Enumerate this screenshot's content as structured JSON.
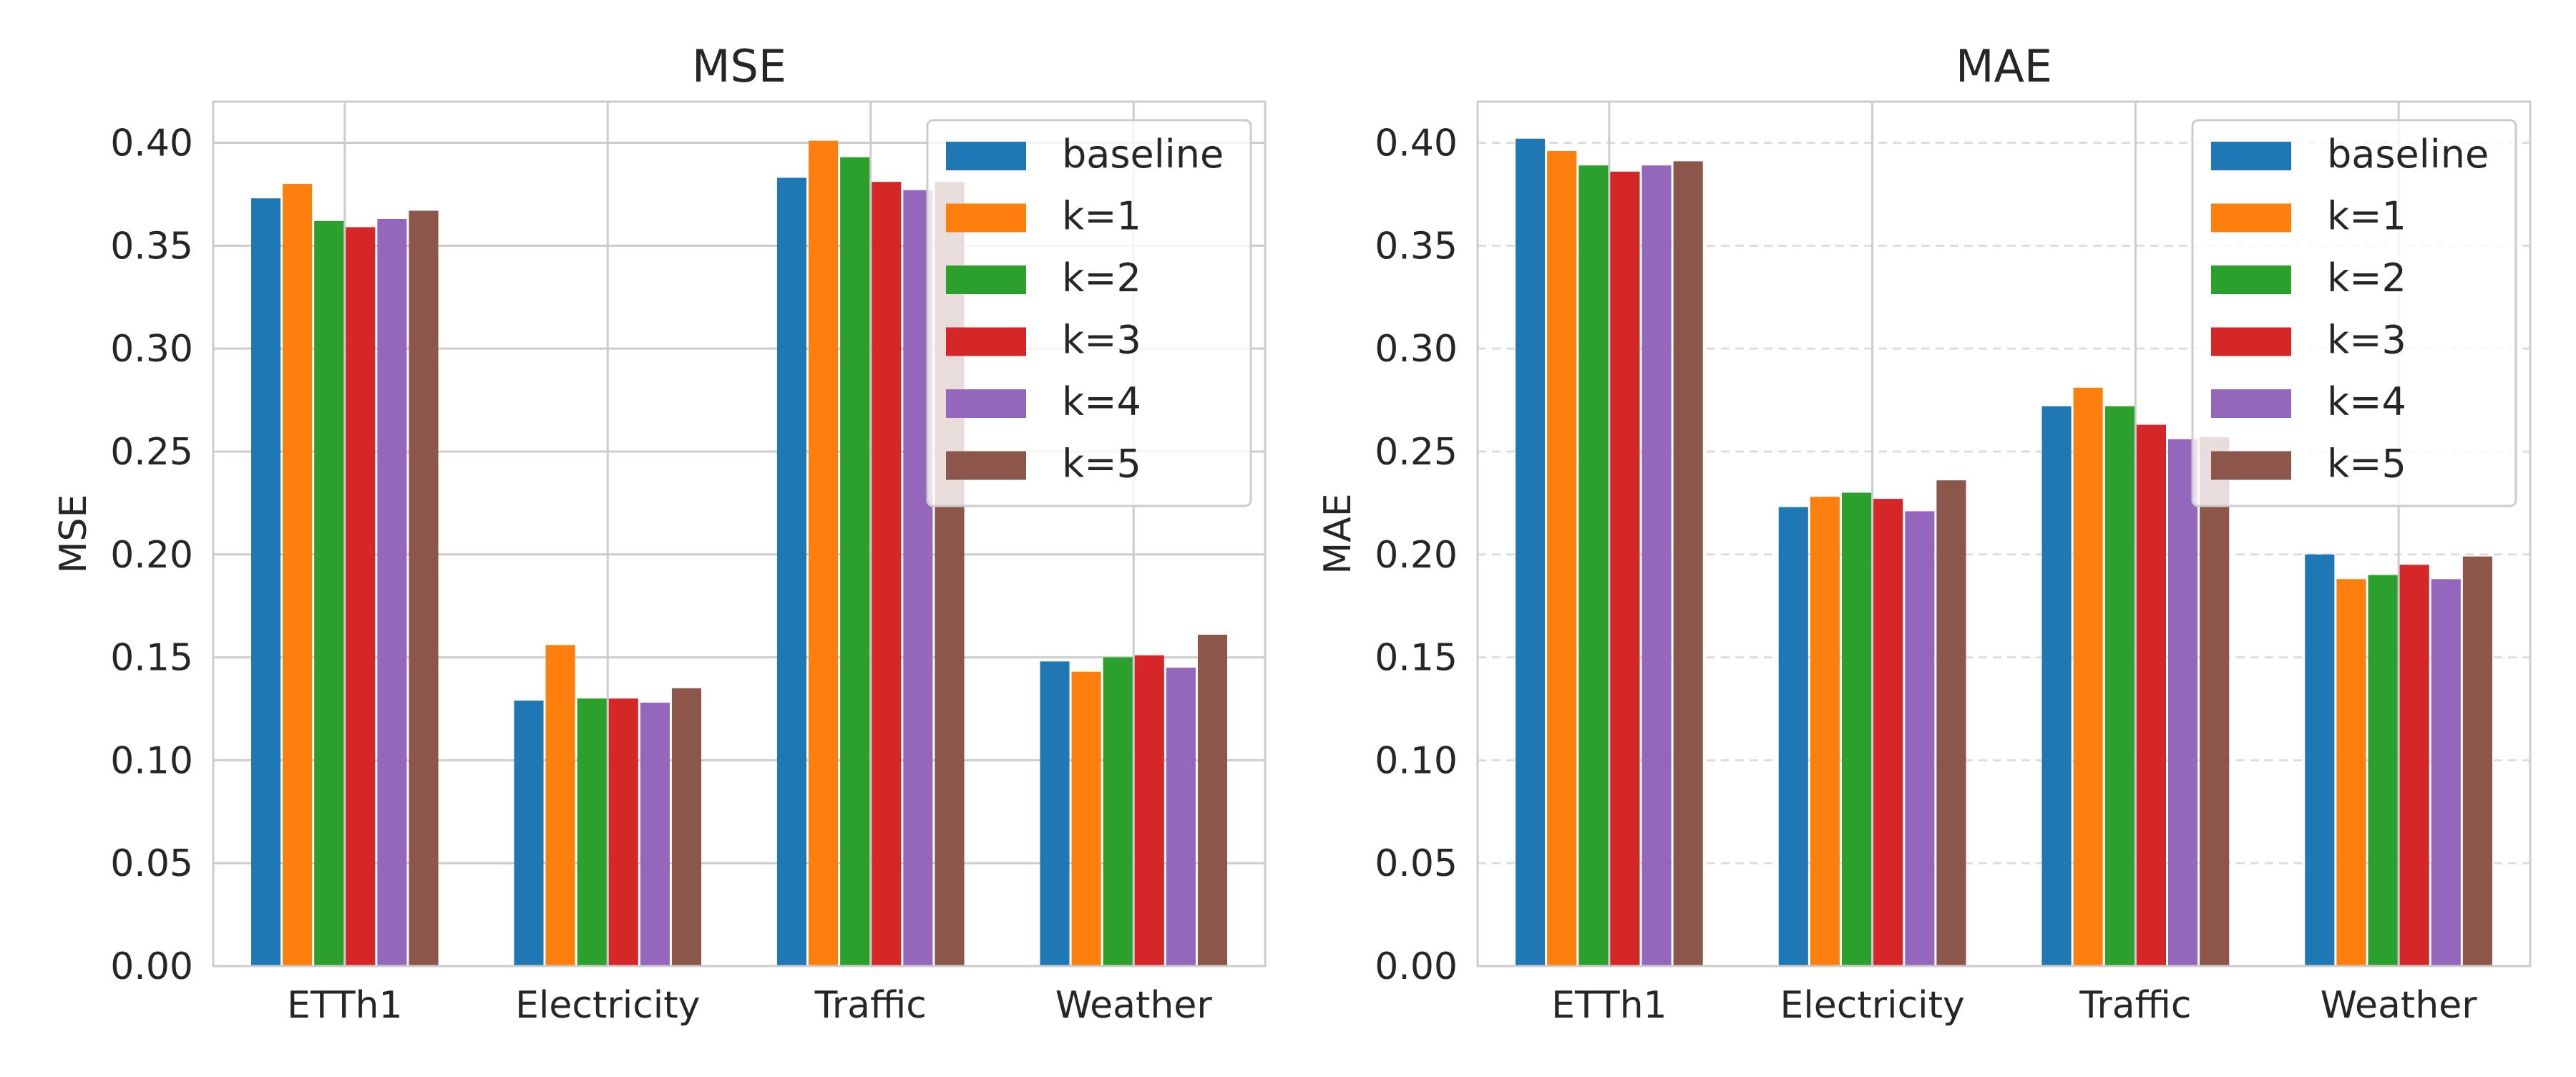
{
  "colors": {
    "baseline": "#1f77b4",
    "k=1": "#ff7f0e",
    "k=2": "#2ca02c",
    "k=3": "#d62728",
    "k=4": "#9467bd",
    "k=5": "#8c564b",
    "grid": "#cccccc",
    "frame": "#cccccc",
    "background": "#ffffff"
  },
  "chart_data": [
    {
      "type": "bar",
      "title": "MSE",
      "xlabel": "",
      "ylabel": "MSE",
      "ylim": [
        0,
        0.42
      ],
      "yticks": [
        "0.00",
        "0.05",
        "0.10",
        "0.15",
        "0.20",
        "0.25",
        "0.30",
        "0.35",
        "0.40"
      ],
      "grid": "solid",
      "legend_position": "upper-right",
      "categories": [
        "ETTh1",
        "Electricity",
        "Traffic",
        "Weather"
      ],
      "series": [
        {
          "name": "baseline",
          "values": [
            0.373,
            0.129,
            0.383,
            0.148
          ]
        },
        {
          "name": "k=1",
          "values": [
            0.38,
            0.156,
            0.401,
            0.143
          ]
        },
        {
          "name": "k=2",
          "values": [
            0.362,
            0.13,
            0.393,
            0.15
          ]
        },
        {
          "name": "k=3",
          "values": [
            0.359,
            0.13,
            0.381,
            0.151
          ]
        },
        {
          "name": "k=4",
          "values": [
            0.363,
            0.128,
            0.377,
            0.145
          ]
        },
        {
          "name": "k=5",
          "values": [
            0.367,
            0.135,
            0.381,
            0.161
          ]
        }
      ]
    },
    {
      "type": "bar",
      "title": "MAE",
      "xlabel": "",
      "ylabel": "MAE",
      "ylim": [
        0,
        0.42
      ],
      "yticks": [
        "0.00",
        "0.05",
        "0.10",
        "0.15",
        "0.20",
        "0.25",
        "0.30",
        "0.35",
        "0.40"
      ],
      "grid": "dashed-y",
      "legend_position": "upper-right",
      "categories": [
        "ETTh1",
        "Electricity",
        "Traffic",
        "Weather"
      ],
      "series": [
        {
          "name": "baseline",
          "values": [
            0.402,
            0.223,
            0.272,
            0.2
          ]
        },
        {
          "name": "k=1",
          "values": [
            0.396,
            0.228,
            0.281,
            0.188
          ]
        },
        {
          "name": "k=2",
          "values": [
            0.389,
            0.23,
            0.272,
            0.19
          ]
        },
        {
          "name": "k=3",
          "values": [
            0.386,
            0.227,
            0.263,
            0.195
          ]
        },
        {
          "name": "k=4",
          "values": [
            0.389,
            0.221,
            0.256,
            0.188
          ]
        },
        {
          "name": "k=5",
          "values": [
            0.391,
            0.236,
            0.257,
            0.199
          ]
        }
      ]
    }
  ]
}
